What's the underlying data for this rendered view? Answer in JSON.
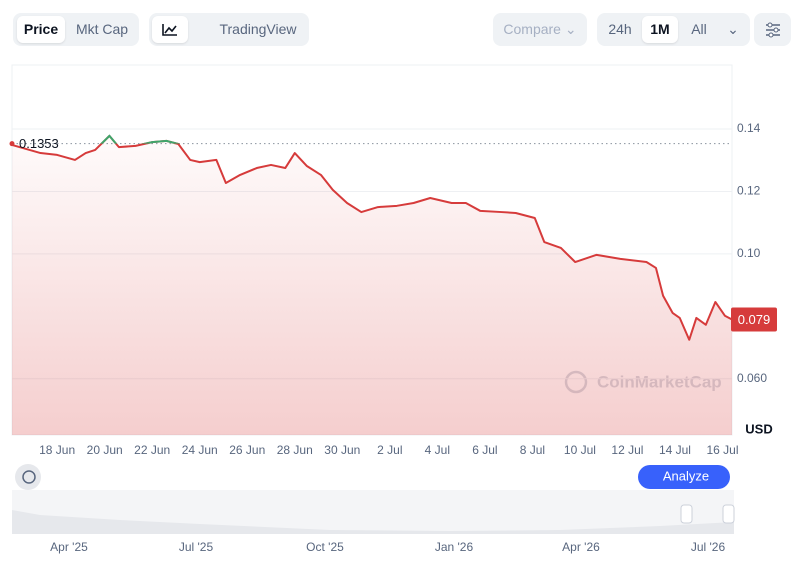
{
  "toolbar": {
    "price": "Price",
    "mkt_cap": "Mkt Cap",
    "tradingview": "TradingView",
    "compare": "Compare",
    "range_24h": "24h",
    "range_1m": "1M",
    "range_all": "All"
  },
  "chart_data": {
    "type": "line",
    "x": [
      16.1,
      17.3,
      18,
      18.75,
      19.2,
      19.6,
      20.2,
      20.6,
      21.3,
      22,
      22.6,
      23.1,
      23.6,
      24,
      24.7,
      25.1,
      25.7,
      26.4,
      27,
      27.6,
      28,
      28.5,
      29.1,
      29.6,
      30.2,
      30.8,
      31.5,
      32.3,
      33,
      33.7,
      34.6,
      35.2,
      35.8,
      36.7,
      37.3,
      38.1,
      38.5,
      39.2,
      39.8,
      40.7,
      41.7,
      42.8,
      43.2,
      43.5,
      43.9,
      44.2,
      44.6,
      44.9,
      45.3,
      45.7,
      46.1,
      46.4
    ],
    "series": [
      {
        "color": "#d63b3b",
        "values": [
          0.1349,
          0.1323,
          0.1317,
          0.1301,
          0.1323,
          0.1333,
          0.1378,
          0.1342,
          0.1346,
          0.1358,
          0.1362,
          0.1352,
          0.1301,
          0.1294,
          0.1301,
          0.1227,
          0.1253,
          0.1275,
          0.1285,
          0.1275,
          0.1323,
          0.1282,
          0.1253,
          0.1205,
          0.1163,
          0.1134,
          0.115,
          0.1154,
          0.1163,
          0.1179,
          0.1163,
          0.1163,
          0.1138,
          0.1134,
          0.1131,
          0.1115,
          0.1038,
          0.1019,
          0.0974,
          0.0997,
          0.0984,
          0.0974,
          0.0955,
          0.0866,
          0.0811,
          0.0795,
          0.0725,
          0.0795,
          0.0773,
          0.0846,
          0.0802,
          0.079
        ]
      }
    ],
    "above_color": "#3fa56b",
    "reference": 0.1353,
    "price_label": 0.079,
    "xlim": [
      16.1,
      46.4
    ],
    "xticks": [
      {
        "value": 18,
        "label": "18 Jun"
      },
      {
        "value": 20,
        "label": "20 Jun"
      },
      {
        "value": 22,
        "label": "22 Jun"
      },
      {
        "value": 24,
        "label": "24 Jun"
      },
      {
        "value": 26,
        "label": "26 Jun"
      },
      {
        "value": 28,
        "label": "28 Jun"
      },
      {
        "value": 30,
        "label": "30 Jun"
      },
      {
        "value": 32,
        "label": "2 Jul"
      },
      {
        "value": 34,
        "label": "4 Jul"
      },
      {
        "value": 36,
        "label": "6 Jul"
      },
      {
        "value": 38,
        "label": "8 Jul"
      },
      {
        "value": 40,
        "label": "10 Jul"
      },
      {
        "value": 42,
        "label": "12 Jul"
      },
      {
        "value": 44,
        "label": "14 Jul"
      },
      {
        "value": 46,
        "label": "16 Jul"
      }
    ],
    "ylim": [
      0.042,
      0.1605
    ],
    "yticks": [
      0.14,
      0.12,
      {
        "value": 0.1,
        "label": "0.10"
      },
      {
        "value": 0.06,
        "label": "0.060"
      }
    ],
    "grid": true,
    "currency": "USD",
    "watermark": "CoinMarketCap"
  },
  "analyze": "Analyze",
  "navigator": {
    "labels": [
      "Apr '25",
      "Jul '25",
      "Oct '25",
      "Jan '26",
      "Apr '26",
      "Jul '26"
    ]
  }
}
